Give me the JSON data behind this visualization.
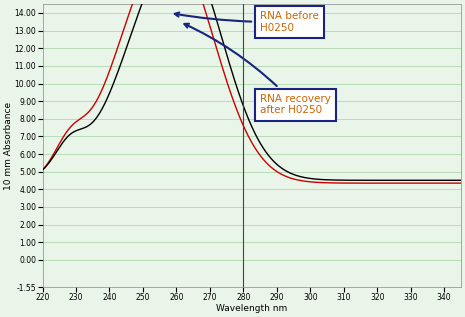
{
  "title": "",
  "xlabel": "Wavelength nm",
  "ylabel": "10 mm Absorbance",
  "xlim": [
    220,
    345
  ],
  "ylim": [
    -1.55,
    14.5
  ],
  "yticks": [
    -1.55,
    0.0,
    1.0,
    2.0,
    3.0,
    4.0,
    5.0,
    6.0,
    7.0,
    8.0,
    9.0,
    10.0,
    11.0,
    12.0,
    13.0,
    14.0
  ],
  "xticks": [
    220,
    230,
    240,
    250,
    260,
    270,
    280,
    290,
    300,
    310,
    320,
    330,
    340
  ],
  "vline_x": 280,
  "background_color": "#e8f5e8",
  "plot_bg_color": "#e8f5e8",
  "grid_color": "#b8ddb8",
  "box_edge_color": "#1a237e",
  "label1_text": "RNA before\nH0250",
  "label2_text": "RNA recovery\nafter H0250",
  "label_text_color": "#cc6600",
  "line1_color": "#cc0000",
  "line2_color": "#000000",
  "axis_bg_color": "#c8c8c8"
}
